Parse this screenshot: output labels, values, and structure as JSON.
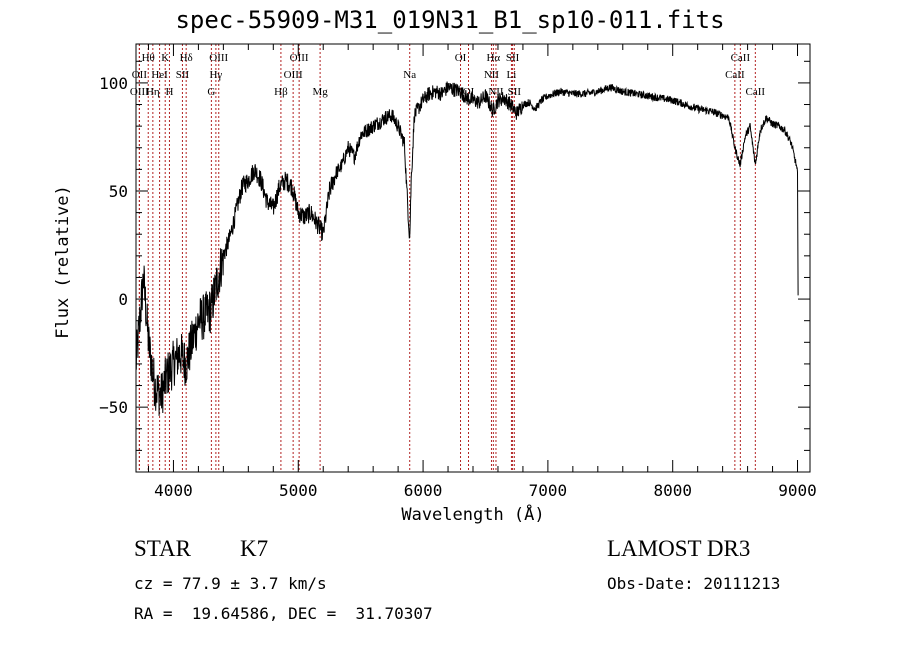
{
  "title": "spec-55909-M31_019N31_B1_sp10-011.fits",
  "chart_data": {
    "type": "line",
    "title": "spec-55909-M31_019N31_B1_sp10-011.fits",
    "xlabel": "Wavelength (Å)",
    "ylabel": "Flux (relative)",
    "xlim": [
      3700,
      9100
    ],
    "ylim": [
      -80,
      118
    ],
    "xticks": [
      4000,
      5000,
      6000,
      7000,
      8000,
      9000
    ],
    "xtick_labels": [
      "4000",
      "5000",
      "6000",
      "7000",
      "8000",
      "9000"
    ],
    "yticks": [
      -50,
      0,
      50,
      100
    ],
    "ytick_labels": [
      "−50",
      "0",
      "50",
      "100"
    ],
    "series": [
      {
        "name": "spectrum",
        "x": [
          3700,
          3760,
          3800,
          3850,
          3900,
          3950,
          4000,
          4050,
          4100,
          4150,
          4200,
          4250,
          4300,
          4350,
          4400,
          4450,
          4500,
          4550,
          4600,
          4650,
          4700,
          4750,
          4800,
          4850,
          4900,
          4950,
          5000,
          5050,
          5100,
          5150,
          5200,
          5250,
          5300,
          5350,
          5400,
          5450,
          5500,
          5550,
          5600,
          5650,
          5700,
          5750,
          5800,
          5850,
          5880,
          5893,
          5905,
          5930,
          5960,
          6000,
          6050,
          6100,
          6150,
          6200,
          6250,
          6300,
          6350,
          6400,
          6450,
          6500,
          6560,
          6600,
          6650,
          6700,
          6750,
          6800,
          6850,
          6900,
          6950,
          7000,
          7100,
          7200,
          7300,
          7400,
          7500,
          7600,
          7700,
          7800,
          7900,
          8000,
          8100,
          8200,
          8300,
          8400,
          8450,
          8498,
          8540,
          8580,
          8620,
          8662,
          8700,
          8750,
          8800,
          8850,
          8900,
          8950,
          8990,
          9000,
          9005
        ],
        "y": [
          -30,
          10,
          -20,
          -40,
          -45,
          -35,
          -30,
          -25,
          -30,
          -20,
          -10,
          -8,
          -5,
          8,
          20,
          28,
          40,
          52,
          55,
          60,
          55,
          45,
          42,
          52,
          55,
          52,
          40,
          38,
          40,
          35,
          30,
          50,
          58,
          62,
          70,
          66,
          76,
          78,
          80,
          82,
          84,
          85,
          80,
          72,
          40,
          28,
          55,
          85,
          88,
          92,
          95,
          96,
          95,
          98,
          97,
          96,
          93,
          92,
          91,
          94,
          87,
          92,
          93,
          90,
          86,
          90,
          91,
          88,
          92,
          94,
          96,
          95,
          95,
          96,
          98,
          96,
          95,
          94,
          93,
          92,
          90,
          88,
          87,
          85,
          84,
          70,
          62,
          75,
          80,
          62,
          78,
          84,
          81,
          80,
          78,
          72,
          62,
          58,
          0
        ]
      }
    ],
    "lines": [
      {
        "name": "Hθ",
        "x": 3798,
        "row": 0
      },
      {
        "name": "OII",
        "x": 3727,
        "row": 1
      },
      {
        "name": "OIII",
        "x": 3727,
        "row": 2
      },
      {
        "name": "K",
        "x": 3934,
        "row": 0
      },
      {
        "name": "H",
        "x": 3968,
        "row": 2
      },
      {
        "name": "HeI",
        "x": 3889,
        "row": 1
      },
      {
        "name": "Hη",
        "x": 3835,
        "row": 2
      },
      {
        "name": "SII",
        "x": 4072,
        "row": 1
      },
      {
        "name": "Hδ",
        "x": 4102,
        "row": 0
      },
      {
        "name": "OIII",
        "x": 4363,
        "row": 0
      },
      {
        "name": "Hγ",
        "x": 4340,
        "row": 1
      },
      {
        "name": "G",
        "x": 4304,
        "row": 2
      },
      {
        "name": "Hβ",
        "x": 4861,
        "row": 2
      },
      {
        "name": "OIII",
        "x": 4959,
        "row": 1
      },
      {
        "name": "OIII",
        "x": 5007,
        "row": 0
      },
      {
        "name": "Mg",
        "x": 5175,
        "row": 2
      },
      {
        "name": "Na",
        "x": 5893,
        "row": 1
      },
      {
        "name": "OI",
        "x": 6300,
        "row": 0
      },
      {
        "name": "OI",
        "x": 6364,
        "row": 2
      },
      {
        "name": "Hα",
        "x": 6563,
        "row": 0
      },
      {
        "name": "NII",
        "x": 6548,
        "row": 1
      },
      {
        "name": "NII",
        "x": 6584,
        "row": 2
      },
      {
        "name": "SII",
        "x": 6717,
        "row": 0
      },
      {
        "name": "Li",
        "x": 6708,
        "row": 1
      },
      {
        "name": "SII",
        "x": 6731,
        "row": 2
      },
      {
        "name": "CaII",
        "x": 8542,
        "row": 0
      },
      {
        "name": "CaII",
        "x": 8498,
        "row": 1
      },
      {
        "name": "CaII",
        "x": 8662,
        "row": 2
      }
    ],
    "grid": false
  },
  "annotations": {
    "class": "STAR",
    "subclass": "K7",
    "survey": "LAMOST DR3",
    "cz": "cz = 77.9 ± 3.7 km/s",
    "obs_date": "Obs-Date: 20111213",
    "coords": "RA =  19.64586, DEC =  31.70307"
  }
}
